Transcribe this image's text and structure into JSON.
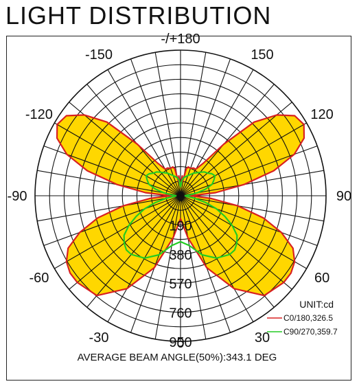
{
  "title": "LIGHT DISTRIBUTION",
  "chart_data": {
    "type": "polar",
    "angle_labels": [
      {
        "angle": 180,
        "text": "-/+180"
      },
      {
        "angle": -150,
        "text": "-150"
      },
      {
        "angle": 150,
        "text": "150"
      },
      {
        "angle": -120,
        "text": "-120"
      },
      {
        "angle": 120,
        "text": "120"
      },
      {
        "angle": -90,
        "text": "-90"
      },
      {
        "angle": 90,
        "text": "90"
      },
      {
        "angle": -60,
        "text": "-60"
      },
      {
        "angle": 60,
        "text": "60"
      },
      {
        "angle": -30,
        "text": "-30"
      },
      {
        "angle": 30,
        "text": "30"
      },
      {
        "angle": 0,
        "text": "0"
      }
    ],
    "radial_labels": [
      "0",
      "190",
      "380",
      "570",
      "760",
      "950"
    ],
    "radial_values": [
      0,
      190,
      380,
      570,
      760,
      950
    ],
    "r_max": 950,
    "unit_label": "UNIT:cd",
    "series": [
      {
        "name": "C0/180,326.5",
        "color": "#d82020",
        "fill": "#ffd700",
        "points": [
          [
            0,
            150
          ],
          [
            10,
            280
          ],
          [
            20,
            500
          ],
          [
            30,
            700
          ],
          [
            40,
            850
          ],
          [
            50,
            880
          ],
          [
            55,
            880
          ],
          [
            60,
            860
          ],
          [
            65,
            810
          ],
          [
            70,
            700
          ],
          [
            75,
            560
          ],
          [
            80,
            380
          ],
          [
            85,
            200
          ],
          [
            88,
            90
          ],
          [
            90,
            40
          ],
          [
            92,
            90
          ],
          [
            95,
            230
          ],
          [
            100,
            420
          ],
          [
            105,
            630
          ],
          [
            110,
            790
          ],
          [
            115,
            890
          ],
          [
            120,
            930
          ],
          [
            125,
            910
          ],
          [
            130,
            820
          ],
          [
            135,
            680
          ],
          [
            140,
            440
          ],
          [
            145,
            260
          ],
          [
            150,
            200
          ],
          [
            155,
            200
          ],
          [
            160,
            190
          ],
          [
            165,
            195
          ],
          [
            168,
            180
          ],
          [
            170,
            120
          ],
          [
            172,
            95
          ],
          [
            175,
            130
          ],
          [
            178,
            70
          ],
          [
            180,
            60
          ]
        ]
      },
      {
        "name": "C90/270,359.7",
        "color": "#22cc22",
        "fill": "none",
        "points": [
          [
            0,
            300
          ],
          [
            10,
            330
          ],
          [
            20,
            410
          ],
          [
            30,
            470
          ],
          [
            40,
            500
          ],
          [
            45,
            500
          ],
          [
            50,
            480
          ],
          [
            55,
            450
          ],
          [
            60,
            390
          ],
          [
            65,
            320
          ],
          [
            70,
            250
          ],
          [
            75,
            170
          ],
          [
            80,
            90
          ],
          [
            85,
            40
          ],
          [
            90,
            30
          ],
          [
            95,
            60
          ],
          [
            100,
            110
          ],
          [
            105,
            170
          ],
          [
            110,
            220
          ],
          [
            115,
            240
          ],
          [
            120,
            260
          ],
          [
            125,
            250
          ],
          [
            130,
            230
          ],
          [
            135,
            220
          ],
          [
            140,
            200
          ],
          [
            150,
            170
          ],
          [
            160,
            140
          ],
          [
            170,
            120
          ],
          [
            175,
            100
          ],
          [
            178,
            70
          ],
          [
            180,
            60
          ]
        ]
      }
    ]
  },
  "footer": "AVERAGE BEAM ANGLE(50%):343.1 DEG"
}
